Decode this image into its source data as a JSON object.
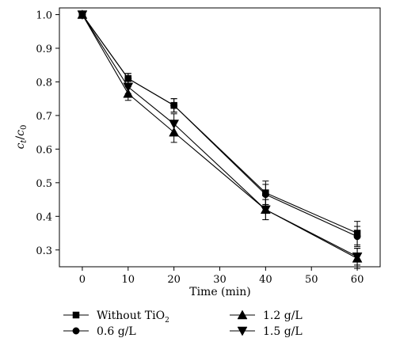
{
  "chart_data": {
    "type": "line",
    "title": "",
    "xlabel": "Time (min)",
    "ylabel": {
      "main": "c",
      "sub1": "t",
      "slash": "/",
      "main2": "c",
      "sub2": "0"
    },
    "xlim": [
      -5,
      65
    ],
    "ylim": [
      0.25,
      1.02
    ],
    "x_ticks": [
      "0",
      "10",
      "20",
      "30",
      "40",
      "50",
      "60"
    ],
    "y_ticks": [
      "1.0",
      "0.9",
      "0.8",
      "0.7",
      "0.6",
      "0.5",
      "0.4",
      "0.3"
    ],
    "x": [
      0,
      10,
      20,
      40,
      60
    ],
    "grid": false,
    "legend_position": "below",
    "series": [
      {
        "name": "Without TiO",
        "name_sub": "2",
        "marker": "square",
        "values": [
          1.0,
          0.81,
          0.73,
          0.47,
          0.35
        ],
        "errors": [
          0,
          0.015,
          0.02,
          0.035,
          0.035
        ]
      },
      {
        "name": "0.6 g/L",
        "name_sub": "",
        "marker": "circle",
        "values": [
          1.0,
          0.81,
          0.73,
          0.465,
          0.34
        ],
        "errors": [
          0,
          0.015,
          0.02,
          0.03,
          0.03
        ]
      },
      {
        "name": "1.2 g/L",
        "name_sub": "",
        "marker": "triangle-up",
        "values": [
          1.0,
          0.765,
          0.65,
          0.42,
          0.275
        ],
        "errors": [
          0,
          0.02,
          0.03,
          0.03,
          0.03
        ]
      },
      {
        "name": "1.5 g/L",
        "name_sub": "",
        "marker": "triangle-down",
        "values": [
          1.0,
          0.785,
          0.675,
          0.42,
          0.28
        ],
        "errors": [
          0,
          0.02,
          0.03,
          0.03,
          0.025
        ]
      }
    ]
  }
}
